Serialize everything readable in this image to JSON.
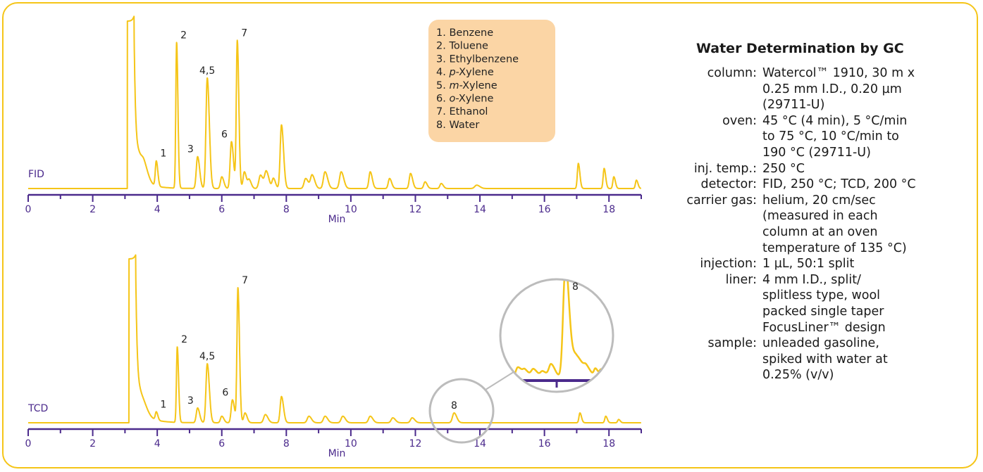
{
  "chart_data": {
    "type": "line",
    "xlabel": "Min",
    "xlim": [
      0,
      19
    ],
    "x_ticks": [
      0,
      2,
      4,
      6,
      8,
      10,
      12,
      14,
      16,
      18
    ],
    "legend_placement": "top-center",
    "line_color": "#f5c518",
    "axis_color": "#4b2a8c",
    "legend_bg": "#fbd5a5",
    "legend": [
      {
        "num": "1.",
        "pre": "",
        "ital": "",
        "post": "Benzene"
      },
      {
        "num": "2.",
        "pre": "",
        "ital": "",
        "post": "Toluene"
      },
      {
        "num": "3.",
        "pre": "",
        "ital": "",
        "post": "Ethylbenzene"
      },
      {
        "num": "4.",
        "pre": "",
        "ital": "p",
        "post": "-Xylene"
      },
      {
        "num": "5.",
        "pre": "",
        "ital": "m",
        "post": "-Xylene"
      },
      {
        "num": "6.",
        "pre": "",
        "ital": "o",
        "post": "-Xylene"
      },
      {
        "num": "7.",
        "pre": "",
        "ital": "",
        "post": "Ethanol"
      },
      {
        "num": "8.",
        "pre": "",
        "ital": "",
        "post": "Water"
      }
    ],
    "series": [
      {
        "name": "FID",
        "baseline": 0,
        "peaks": [
          {
            "x": 3.1,
            "h": 100,
            "w": 0.06,
            "flat": true
          },
          {
            "x": 3.45,
            "h": 12,
            "w": 0.1
          },
          {
            "x": 3.6,
            "h": 5,
            "w": 0.08
          },
          {
            "x": 3.97,
            "h": 15,
            "w": 0.03,
            "label": "1"
          },
          {
            "x": 4.6,
            "h": 87,
            "w": 0.025,
            "label": "2"
          },
          {
            "x": 5.25,
            "h": 19,
            "w": 0.04,
            "label": "3"
          },
          {
            "x": 5.55,
            "h": 66,
            "w": 0.04,
            "label": "4,5"
          },
          {
            "x": 6.0,
            "h": 7,
            "w": 0.04
          },
          {
            "x": 6.3,
            "h": 28,
            "w": 0.04,
            "label": "6"
          },
          {
            "x": 6.48,
            "h": 88,
            "w": 0.03,
            "label": "7"
          },
          {
            "x": 6.7,
            "h": 10,
            "w": 0.04
          },
          {
            "x": 6.85,
            "h": 5,
            "w": 0.04
          },
          {
            "x": 7.2,
            "h": 8,
            "w": 0.05
          },
          {
            "x": 7.38,
            "h": 10,
            "w": 0.05
          },
          {
            "x": 7.6,
            "h": 6,
            "w": 0.04
          },
          {
            "x": 7.85,
            "h": 38,
            "w": 0.04
          },
          {
            "x": 8.6,
            "h": 6,
            "w": 0.05
          },
          {
            "x": 8.8,
            "h": 8,
            "w": 0.05
          },
          {
            "x": 9.2,
            "h": 10,
            "w": 0.05
          },
          {
            "x": 9.7,
            "h": 10,
            "w": 0.05
          },
          {
            "x": 10.6,
            "h": 10,
            "w": 0.04
          },
          {
            "x": 11.2,
            "h": 6,
            "w": 0.04
          },
          {
            "x": 11.85,
            "h": 9,
            "w": 0.04
          },
          {
            "x": 12.3,
            "h": 4,
            "w": 0.04
          },
          {
            "x": 12.8,
            "h": 3,
            "w": 0.04
          },
          {
            "x": 13.9,
            "h": 2,
            "w": 0.06
          },
          {
            "x": 17.05,
            "h": 15,
            "w": 0.03
          },
          {
            "x": 17.85,
            "h": 12,
            "w": 0.03
          },
          {
            "x": 18.15,
            "h": 7,
            "w": 0.03
          },
          {
            "x": 18.85,
            "h": 5,
            "w": 0.03
          }
        ]
      },
      {
        "name": "TCD",
        "baseline": 0,
        "peaks": [
          {
            "x": 3.15,
            "h": 100,
            "w": 0.06,
            "flat": true
          },
          {
            "x": 3.5,
            "h": 10,
            "w": 0.1
          },
          {
            "x": 3.97,
            "h": 5,
            "w": 0.03,
            "label": "1"
          },
          {
            "x": 4.62,
            "h": 46,
            "w": 0.025,
            "label": "2"
          },
          {
            "x": 5.25,
            "h": 9,
            "w": 0.04,
            "label": "3"
          },
          {
            "x": 5.55,
            "h": 36,
            "w": 0.04,
            "label": "4,5"
          },
          {
            "x": 6.0,
            "h": 4,
            "w": 0.04
          },
          {
            "x": 6.33,
            "h": 14,
            "w": 0.04,
            "label": "6"
          },
          {
            "x": 6.5,
            "h": 82,
            "w": 0.03,
            "label": "7"
          },
          {
            "x": 6.72,
            "h": 6,
            "w": 0.04
          },
          {
            "x": 7.35,
            "h": 5,
            "w": 0.05
          },
          {
            "x": 7.85,
            "h": 16,
            "w": 0.04
          },
          {
            "x": 8.7,
            "h": 4,
            "w": 0.05
          },
          {
            "x": 9.2,
            "h": 4,
            "w": 0.05
          },
          {
            "x": 9.75,
            "h": 4,
            "w": 0.05
          },
          {
            "x": 10.6,
            "h": 4,
            "w": 0.05
          },
          {
            "x": 11.3,
            "h": 3,
            "w": 0.05
          },
          {
            "x": 11.9,
            "h": 3,
            "w": 0.05
          },
          {
            "x": 13.2,
            "h": 6,
            "w": 0.05,
            "label": "8"
          },
          {
            "x": 17.1,
            "h": 6,
            "w": 0.03
          },
          {
            "x": 17.9,
            "h": 4,
            "w": 0.03
          },
          {
            "x": 18.3,
            "h": 2,
            "w": 0.03
          }
        ]
      }
    ],
    "inset": {
      "label": "8"
    }
  },
  "info": {
    "title": "Water Determination by GC",
    "rows": [
      {
        "label": "column:",
        "lines": [
          "Watercol™ 1910, 30 m x",
          "0.25 mm I.D., 0.20 µm",
          "(29711-U)"
        ]
      },
      {
        "label": "oven:",
        "lines": [
          "45 °C (4 min), 5 °C/min",
          "to 75 °C, 10 °C/min to",
          "190 °C (29711-U)"
        ]
      },
      {
        "label": "inj. temp.:",
        "lines": [
          "250 °C"
        ]
      },
      {
        "label": "detector:",
        "lines": [
          "FID, 250 °C; TCD, 200 °C"
        ]
      },
      {
        "label": "carrier gas:",
        "lines": [
          "helium, 20 cm/sec",
          "(measured in each",
          "column at an oven",
          "temperature of 135 °C)"
        ]
      },
      {
        "label": "injection:",
        "lines": [
          "1 µL, 50:1 split"
        ]
      },
      {
        "label": "liner:",
        "lines": [
          "4 mm I.D., split/",
          "splitless type, wool",
          "packed single taper",
          "FocusLiner™ design"
        ]
      },
      {
        "label": "sample:",
        "lines": [
          "unleaded gasoline,",
          "spiked with water at",
          "0.25% (v/v)"
        ]
      }
    ]
  }
}
